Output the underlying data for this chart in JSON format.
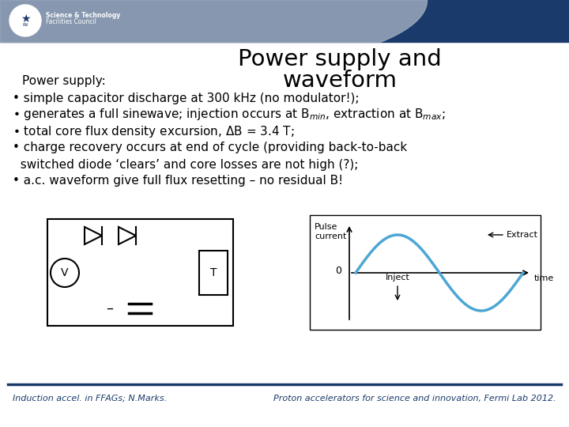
{
  "title_line1": "Power supply and",
  "title_line2": "waveform",
  "subtitle_label": "Power supply:",
  "footer_left": "Induction accel. in FFAGs; N.Marks.",
  "footer_right": "Proton accelerators for science and innovation, Fermi Lab 2012.",
  "header_bg": "#1a3a6b",
  "accent_color": "#b0b8c8",
  "footer_color": "#1a3a6b",
  "title_color": "#000000",
  "text_color": "#000000",
  "background_color": "#ffffff",
  "wave_color": "#4da6d4"
}
